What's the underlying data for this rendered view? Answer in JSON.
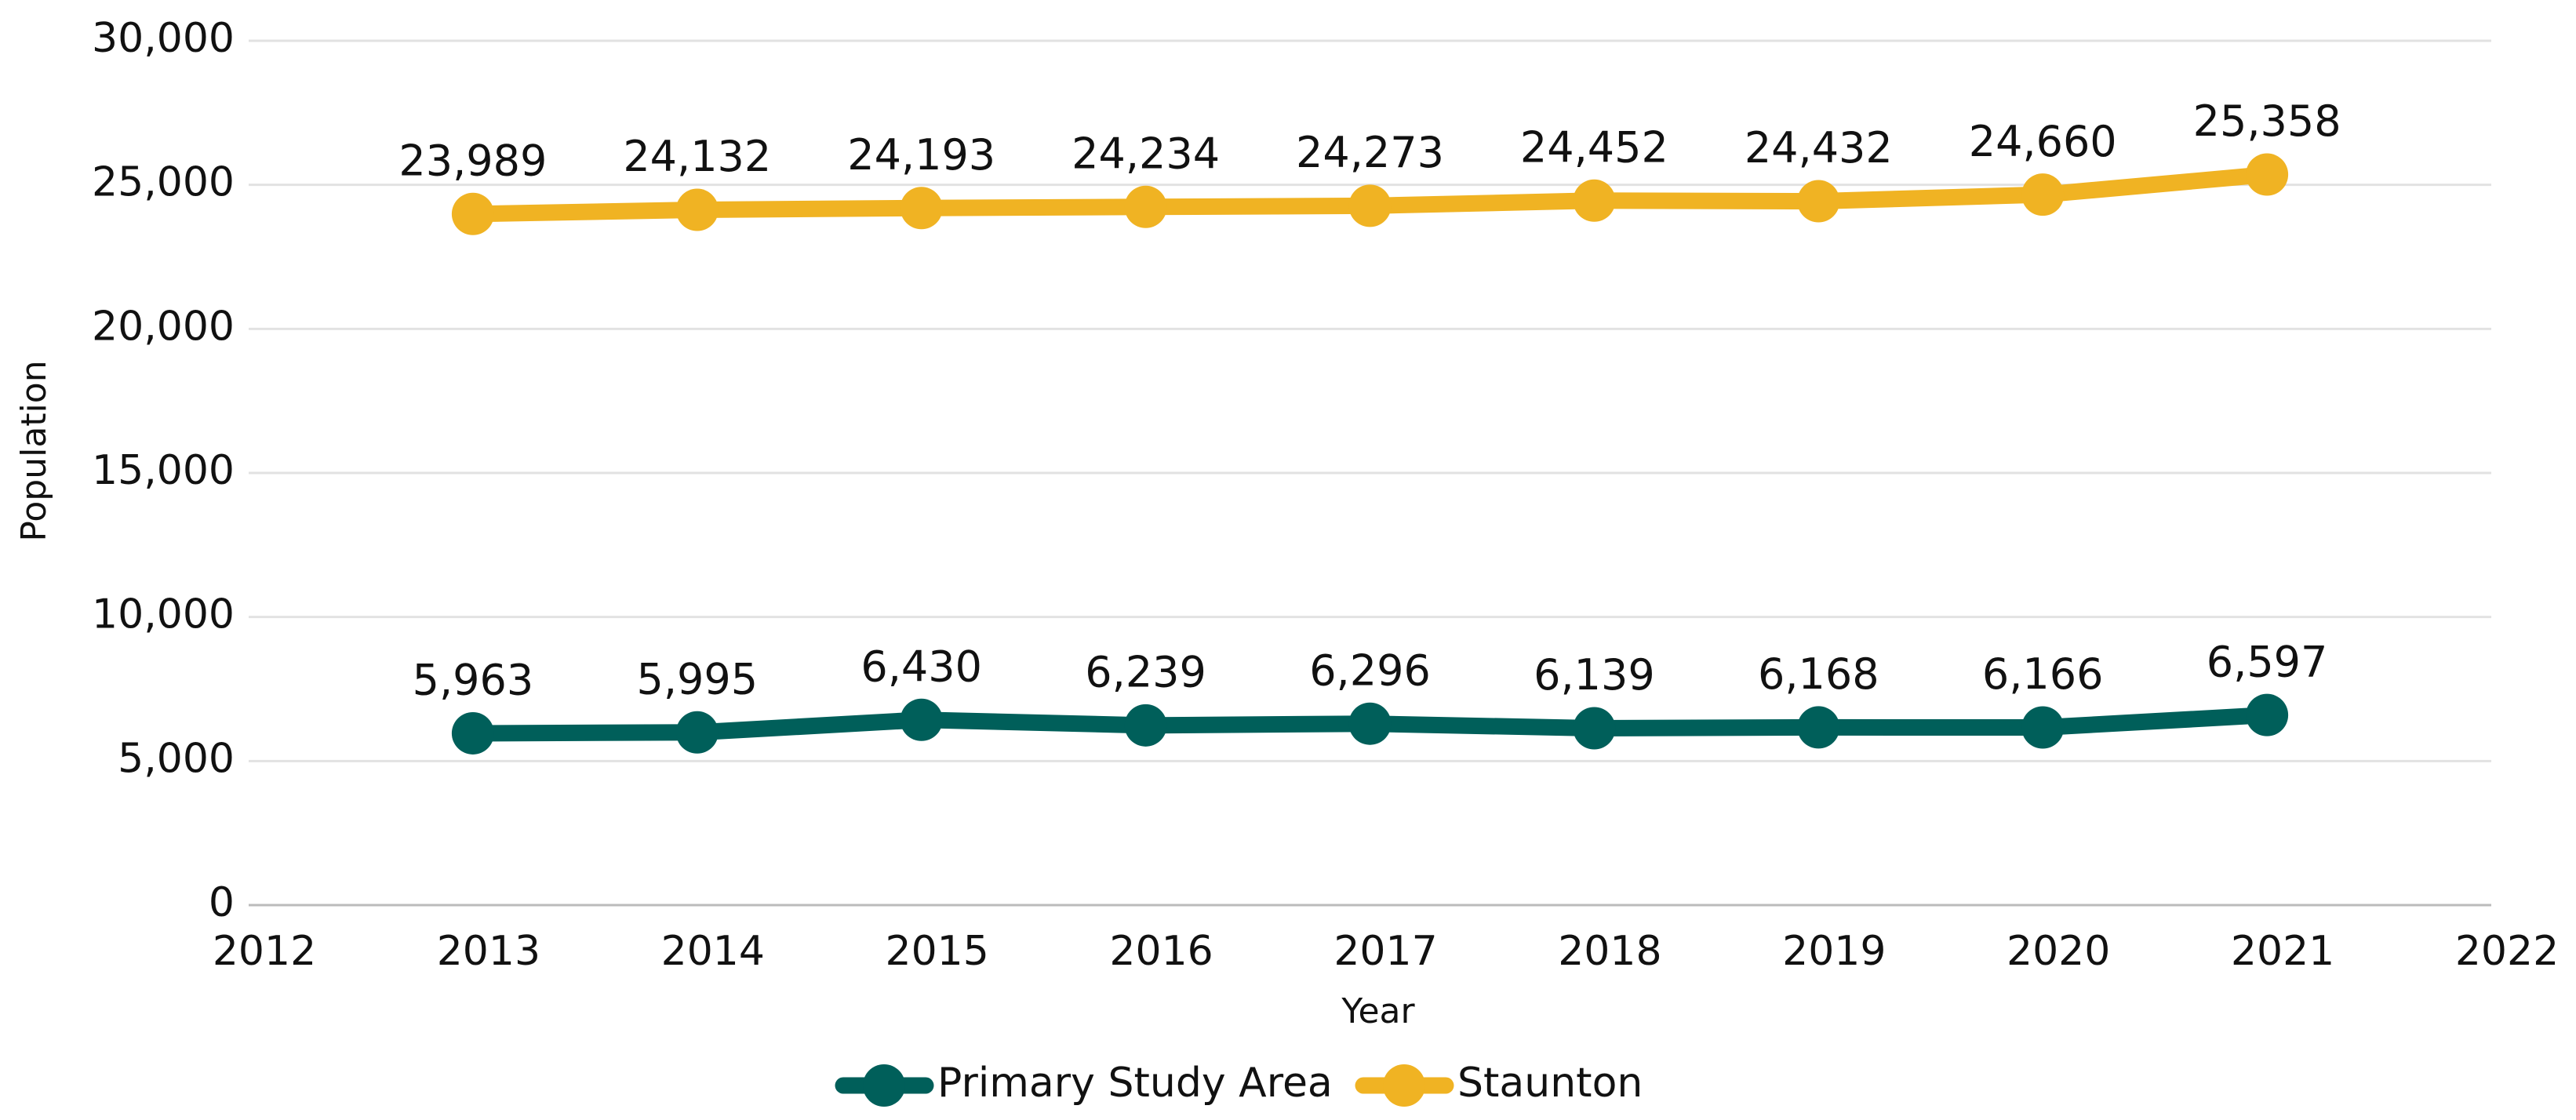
{
  "chart_data": {
    "type": "line",
    "x_label": "Year",
    "y_label": "Population",
    "x": [
      2013,
      2014,
      2015,
      2016,
      2017,
      2018,
      2019,
      2020,
      2021
    ],
    "series": [
      {
        "name": "Primary Study Area",
        "color": "#005f5a",
        "values": [
          5963,
          5995,
          6430,
          6239,
          6296,
          6139,
          6168,
          6166,
          6597
        ],
        "value_labels": [
          "5,963",
          "5,995",
          "6,430",
          "6,239",
          "6,296",
          "6,139",
          "6,168",
          "6,166",
          "6,597"
        ]
      },
      {
        "name": "Staunton",
        "color": "#f0b323",
        "values": [
          23989,
          24132,
          24193,
          24234,
          24273,
          24452,
          24432,
          24660,
          25358
        ],
        "value_labels": [
          "23,989",
          "24,132",
          "24,193",
          "24,234",
          "24,273",
          "24,452",
          "24,432",
          "24,660",
          "25,358"
        ]
      }
    ],
    "xlim": [
      2012,
      2022
    ],
    "xticks": [
      2012,
      2013,
      2014,
      2015,
      2016,
      2017,
      2018,
      2019,
      2020,
      2021,
      2022
    ],
    "ylim": [
      0,
      30000
    ],
    "yticks": [
      0,
      {
        "value": 5000,
        "label": "5,000"
      },
      {
        "value": 10000,
        "label": "10,000"
      },
      {
        "value": 15000,
        "label": "15,000"
      },
      {
        "value": 20000,
        "label": "20,000"
      },
      {
        "value": 25000,
        "label": "25,000"
      },
      {
        "value": 30000,
        "label": "30,000"
      }
    ],
    "grid": true,
    "legend": "bottom"
  }
}
